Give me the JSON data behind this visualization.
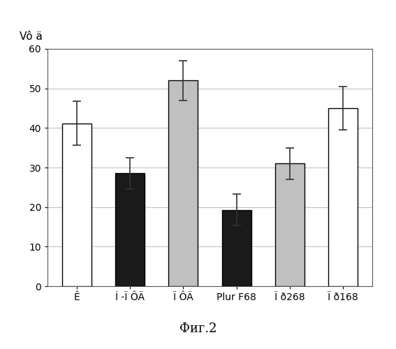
{
  "categories": [
    "Ê",
    "Í -Ï ÔÄ",
    "Ï ÔÄ",
    "Plur F68",
    "Ï ð268",
    "Ï ð168"
  ],
  "values": [
    41.2,
    28.5,
    52.0,
    19.3,
    31.0,
    45.0
  ],
  "errors": [
    5.5,
    4.0,
    5.0,
    4.0,
    4.0,
    5.5
  ],
  "bar_colors": [
    "#ffffff",
    "#1a1a1a",
    "#c0c0c0",
    "#1a1a1a",
    "#c0c0c0",
    "#ffffff"
  ],
  "bar_edgecolors": [
    "#000000",
    "#000000",
    "#000000",
    "#000000",
    "#000000",
    "#000000"
  ],
  "ylabel_text": "Vô ä",
  "caption": "Фиг.2",
  "ylim": [
    0,
    60
  ],
  "yticks": [
    0,
    10,
    20,
    30,
    40,
    50,
    60
  ],
  "grid_color": "#bbbbbb",
  "background_color": "#ffffff",
  "bar_width": 0.55,
  "caption_fontsize": 13,
  "tick_fontsize": 10,
  "ylabel_fontsize": 11,
  "ecolor": "#333333",
  "elinewidth": 1.2,
  "capsize": 4
}
